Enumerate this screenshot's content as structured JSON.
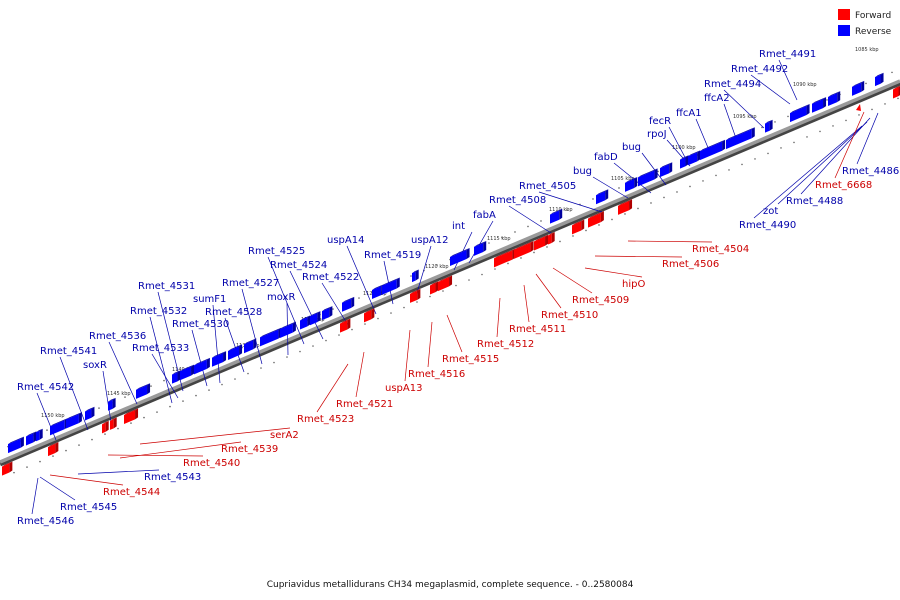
{
  "legend": {
    "forward_label": "Forward",
    "reverse_label": "Reverse",
    "forward_color": "#ff0000",
    "reverse_color": "#0000ff"
  },
  "caption": "Cupriavidus metallidurans CH34 megaplasmid, complete sequence. - 0..2580084",
  "colors": {
    "forward_label": "#cc0000",
    "reverse_label": "#0000aa",
    "forward_box": "#ff0000",
    "forward_box_dark": "#b00000",
    "reverse_box": "#0000ff",
    "reverse_box_dark": "#0000a0",
    "backbone": "#8c8c8c",
    "backbone_shadow": "#444444"
  },
  "scale_labels": [
    "1085 kbp",
    "1090 kbp",
    "1095 kbp",
    "1100 kbp",
    "1105 kbp",
    "1110 kbp",
    "1115 kbp",
    "1120 kbp",
    "1125 kbp",
    "1130 kbp",
    "1135 kbp",
    "1140 kbp",
    "1145 kbp",
    "1150 kbp"
  ],
  "reverse_genes": [
    "Rmet_4491",
    "Rmet_4492",
    "Rmet_4494",
    "ffcA2",
    "ffcA1",
    "fecR",
    "rpoJ",
    "bug",
    "fabD",
    "bug",
    "Rmet_4505",
    "Rmet_4508",
    "fabA",
    "int",
    "uspA12",
    "uspA14",
    "Rmet_4519",
    "Rmet_4522",
    "Rmet_4524",
    "Rmet_4525",
    "moxR",
    "Rmet_4527",
    "Rmet_4528",
    "sumF1",
    "Rmet_4530",
    "Rmet_4531",
    "Rmet_4532",
    "Rmet_4533",
    "Rmet_4536",
    "soxR",
    "Rmet_4541",
    "Rmet_4542",
    "Rmet_4486",
    "Rmet_4488",
    "zot",
    "Rmet_4490",
    "Rmet_4543",
    "Rmet_4545",
    "Rmet_4546"
  ],
  "forward_genes": [
    "Rmet_6668",
    "Rmet_4504",
    "Rmet_4506",
    "hipO",
    "Rmet_4509",
    "Rmet_4510",
    "Rmet_4511",
    "Rmet_4512",
    "Rmet_4515",
    "Rmet_4516",
    "uspA13",
    "Rmet_4521",
    "Rmet_4523",
    "serA2",
    "Rmet_4539",
    "Rmet_4540",
    "Rmet_4544"
  ]
}
